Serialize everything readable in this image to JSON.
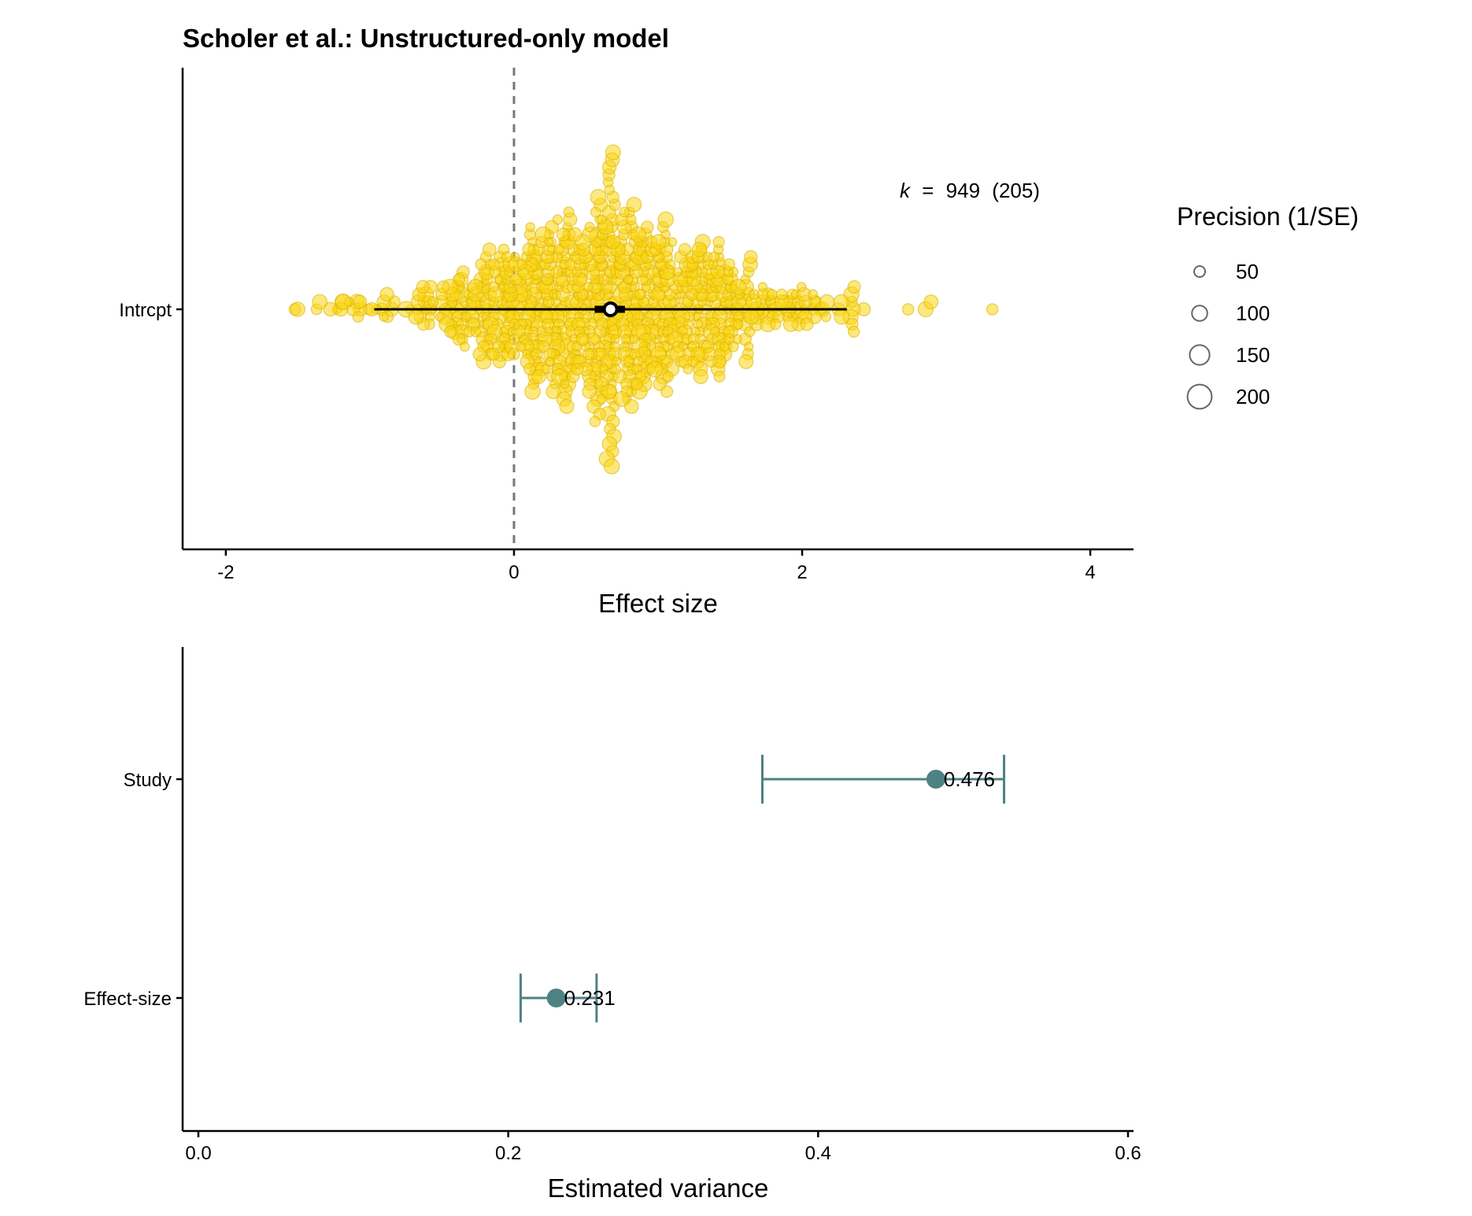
{
  "figure": {
    "title": "Scholer et al.: Unstructured-only model"
  },
  "legend": {
    "title": "Precision (1/SE)",
    "items": [
      {
        "label": "50",
        "value": 50
      },
      {
        "label": "100",
        "value": 100
      },
      {
        "label": "150",
        "value": 150
      },
      {
        "label": "200",
        "value": 200
      }
    ]
  },
  "chart_data": [
    {
      "type": "scatter",
      "subtype": "orchard-plot",
      "title": "Scholer et al.: Unstructured-only model",
      "xlabel": "Effect size",
      "ylabel": "",
      "categories": [
        "Intrcpt"
      ],
      "xlim": [
        -2.3,
        4.3
      ],
      "xticks": [
        -2,
        0,
        2,
        4
      ],
      "xtick_labels": [
        "-2",
        "0",
        "2",
        "4"
      ],
      "reference_line": 0,
      "annotation": {
        "k_symbol": "k",
        "equals": "=",
        "k_value": "949",
        "group_count": "(205)"
      },
      "k": 949,
      "groups": 205,
      "estimate": 0.67,
      "ci": [
        0.56,
        0.77
      ],
      "pi": [
        -0.97,
        2.31
      ],
      "observed_range": [
        -1.52,
        3.33
      ],
      "point_color": "#FAD510",
      "point_edge_color": "#DDB100",
      "grid": false,
      "legend_position": "right"
    },
    {
      "type": "scatter",
      "subtype": "dot-errorbar",
      "xlabel": "Estimated variance",
      "ylabel": "",
      "categories": [
        "Study",
        "Effect-size"
      ],
      "values": [
        0.476,
        0.231
      ],
      "value_labels": [
        "0.476",
        "0.231"
      ],
      "ci_lower": [
        0.364,
        0.208
      ],
      "ci_upper": [
        0.52,
        0.257
      ],
      "xlim": [
        -0.01,
        0.6
      ],
      "xticks": [
        0.0,
        0.2,
        0.4,
        0.6
      ],
      "xtick_labels": [
        "0.0",
        "0.2",
        "0.4",
        "0.6"
      ],
      "color": "#4D8283",
      "grid": false
    }
  ]
}
